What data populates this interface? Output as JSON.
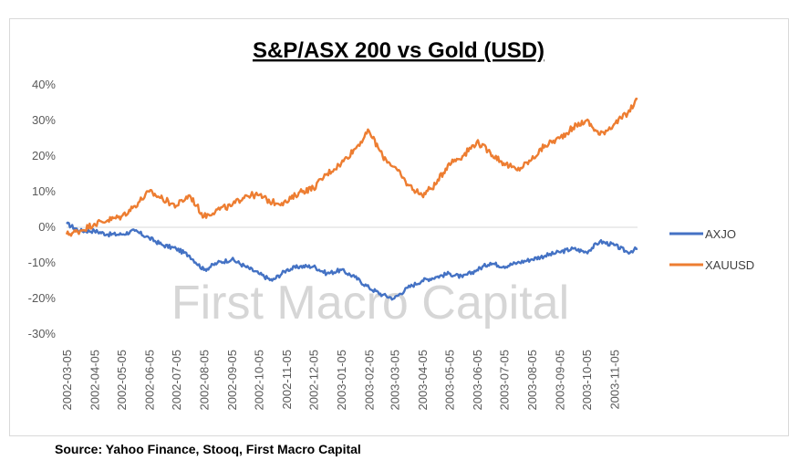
{
  "chart_data": {
    "type": "line",
    "title": "S&P/ASX 200 vs Gold (USD)",
    "xlabel": "",
    "ylabel": "",
    "ylim": [
      -0.3,
      0.4
    ],
    "yticks": [
      "40%",
      "30%",
      "20%",
      "10%",
      "0%",
      "-10%",
      "-20%",
      "-30%"
    ],
    "ytick_values": [
      0.4,
      0.3,
      0.2,
      0.1,
      0.0,
      -0.1,
      -0.2,
      -0.3
    ],
    "xtick_labels": [
      "2002-03-05",
      "2002-04-05",
      "2002-05-05",
      "2002-06-05",
      "2002-07-05",
      "2002-08-05",
      "2002-09-05",
      "2002-10-05",
      "2002-11-05",
      "2002-12-05",
      "2003-01-05",
      "2003-02-05",
      "2003-03-05",
      "2003-04-05",
      "2003-05-05",
      "2003-06-05",
      "2003-07-05",
      "2003-08-05",
      "2003-09-05",
      "2003-10-05",
      "2003-11-05"
    ],
    "grid": false,
    "legend_position": "right",
    "watermark": "First Macro Capital",
    "x": [
      "2002-03-05",
      "2002-03-20",
      "2002-04-05",
      "2002-04-20",
      "2002-05-05",
      "2002-05-20",
      "2002-06-05",
      "2002-06-20",
      "2002-07-05",
      "2002-07-20",
      "2002-08-05",
      "2002-08-20",
      "2002-09-05",
      "2002-09-20",
      "2002-10-05",
      "2002-10-20",
      "2002-11-05",
      "2002-11-20",
      "2002-12-05",
      "2002-12-20",
      "2003-01-05",
      "2003-01-20",
      "2003-02-05",
      "2003-02-20",
      "2003-03-05",
      "2003-03-20",
      "2003-04-05",
      "2003-04-20",
      "2003-05-05",
      "2003-05-20",
      "2003-06-05",
      "2003-06-20",
      "2003-07-05",
      "2003-07-20",
      "2003-08-05",
      "2003-08-20",
      "2003-09-05",
      "2003-09-20",
      "2003-10-05",
      "2003-10-20",
      "2003-11-05",
      "2003-11-20",
      "2003-12-01"
    ],
    "series": [
      {
        "name": "AXJO",
        "color": "#4472C4",
        "values": [
          0.01,
          -0.01,
          -0.01,
          -0.02,
          -0.02,
          -0.01,
          -0.03,
          -0.05,
          -0.06,
          -0.08,
          -0.12,
          -0.1,
          -0.09,
          -0.11,
          -0.13,
          -0.15,
          -0.12,
          -0.11,
          -0.11,
          -0.13,
          -0.12,
          -0.14,
          -0.17,
          -0.19,
          -0.2,
          -0.17,
          -0.15,
          -0.14,
          -0.13,
          -0.14,
          -0.12,
          -0.1,
          -0.11,
          -0.1,
          -0.09,
          -0.08,
          -0.07,
          -0.06,
          -0.07,
          -0.04,
          -0.05,
          -0.07,
          -0.06
        ]
      },
      {
        "name": "XAUUSD",
        "color": "#ED7D31",
        "values": [
          -0.02,
          -0.01,
          0.01,
          0.02,
          0.03,
          0.06,
          0.1,
          0.08,
          0.06,
          0.09,
          0.03,
          0.05,
          0.06,
          0.09,
          0.09,
          0.07,
          0.07,
          0.1,
          0.11,
          0.15,
          0.18,
          0.22,
          0.27,
          0.2,
          0.17,
          0.12,
          0.09,
          0.12,
          0.18,
          0.2,
          0.24,
          0.21,
          0.18,
          0.16,
          0.19,
          0.23,
          0.25,
          0.28,
          0.3,
          0.26,
          0.29,
          0.32,
          0.36
        ]
      }
    ]
  },
  "source_text": "Source: Yahoo Finance, Stooq, First Macro Capital"
}
